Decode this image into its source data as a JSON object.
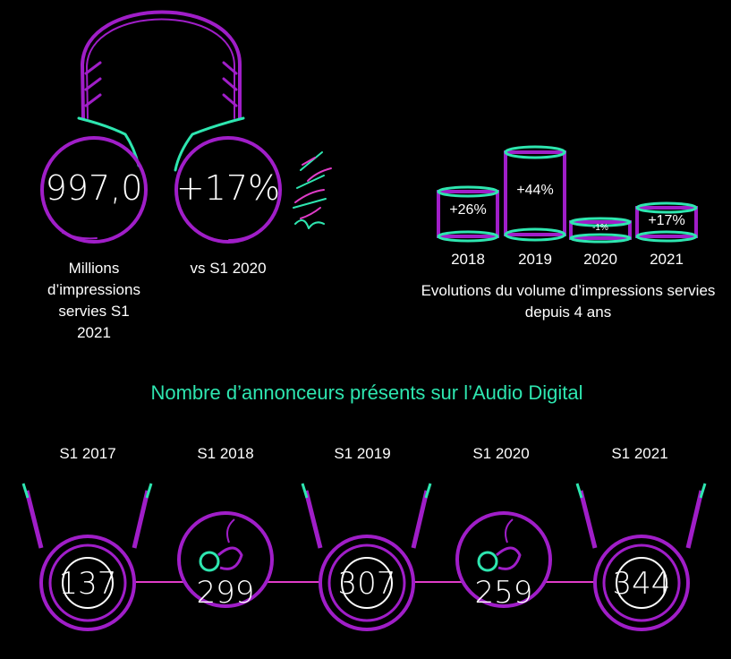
{
  "headline": {
    "value": "997,0",
    "value_label": "Millions d’impressions servies S1 2021",
    "growth": "+17%",
    "growth_label": "vs S1 2020"
  },
  "colors": {
    "purple": "#a01ec8",
    "cyan": "#2ee6b0",
    "pink": "#e03cc8",
    "background": "#000000"
  },
  "chart_data": [
    {
      "type": "bar",
      "categories": [
        "2018",
        "2019",
        "2020",
        "2021"
      ],
      "values": [
        26,
        44,
        -1,
        17
      ],
      "labels": [
        "+26%",
        "+44%",
        "-1%",
        "+17%"
      ],
      "caption": "Evolutions du volume d’impressions servies depuis 4 ans"
    },
    {
      "type": "line",
      "title": "Nombre d’annonceurs présents sur l’Audio Digital",
      "categories": [
        "S1 2017",
        "S1 2018",
        "S1 2019",
        "S1 2020",
        "S1 2021"
      ],
      "values": [
        137,
        299,
        307,
        259,
        344
      ],
      "icons": [
        "jack-cable",
        "earbud",
        "jack-cable",
        "earbud",
        "jack-cable"
      ]
    }
  ]
}
